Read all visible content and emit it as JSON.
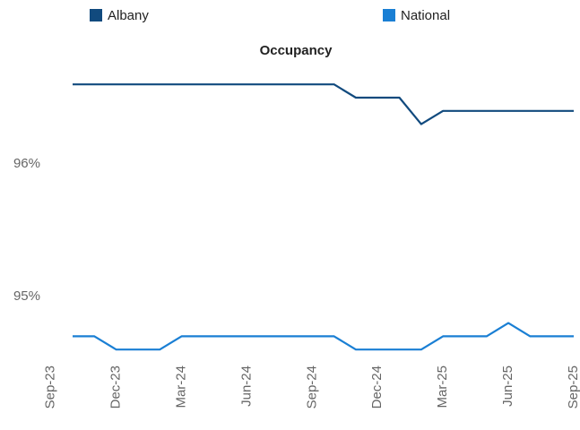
{
  "chart_data": {
    "type": "line",
    "title": "Occupancy",
    "categories": [
      "Sep-23",
      null,
      null,
      "Dec-23",
      null,
      null,
      "Mar-24",
      null,
      null,
      "Jun-24",
      null,
      null,
      "Sep-24",
      null,
      null,
      "Dec-24",
      null,
      null,
      "Mar-25",
      null,
      null,
      "Jun-25",
      null,
      null,
      "Sep-25"
    ],
    "series": [
      {
        "name": "Albany",
        "color": "#114a7e",
        "values": [
          null,
          96.6,
          96.6,
          96.6,
          96.6,
          96.6,
          96.6,
          96.6,
          96.6,
          96.6,
          96.6,
          96.6,
          96.6,
          96.6,
          96.5,
          96.5,
          96.5,
          96.3,
          96.4,
          96.4,
          96.4,
          96.4,
          96.4,
          96.4,
          96.4
        ]
      },
      {
        "name": "National",
        "color": "#1a7fd4",
        "values": [
          null,
          94.7,
          94.7,
          94.6,
          94.6,
          94.6,
          94.7,
          94.7,
          94.7,
          94.7,
          94.7,
          94.7,
          94.7,
          94.7,
          94.6,
          94.6,
          94.6,
          94.6,
          94.7,
          94.7,
          94.7,
          94.8,
          94.7,
          94.7,
          94.7
        ]
      }
    ],
    "ylim": [
      94.5,
      96.7
    ],
    "yticks": [
      {
        "value": 95,
        "label": "95%"
      },
      {
        "value": 96,
        "label": "96%"
      }
    ],
    "grid": false,
    "legend": "top"
  }
}
